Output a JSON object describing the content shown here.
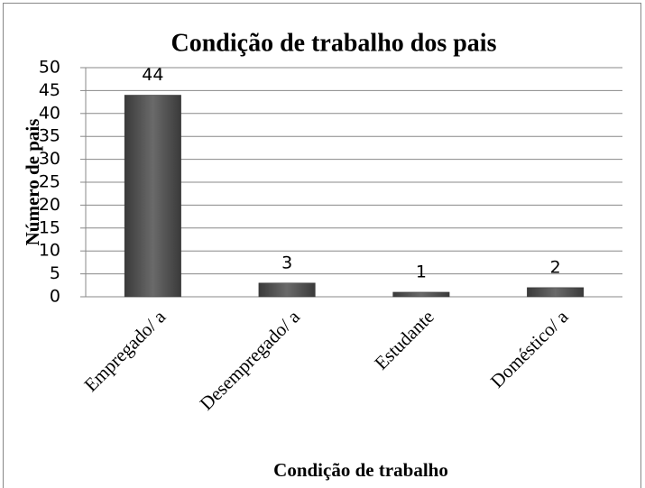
{
  "chart_data": {
    "type": "bar",
    "title": "Condição de trabalho dos pais",
    "x_label": "Condição de trabalho",
    "y_label": "Número de pais",
    "categories": [
      "Empregado/ a",
      "Desempregado/ a",
      "Estudante",
      "Doméstico/ a"
    ],
    "values": [
      44,
      3,
      1,
      2
    ],
    "color": "#555555",
    "ylim": [
      0,
      50
    ],
    "yticks": [
      0,
      5,
      10,
      15,
      20,
      25,
      30,
      35,
      40,
      45,
      50
    ],
    "grid": true
  }
}
